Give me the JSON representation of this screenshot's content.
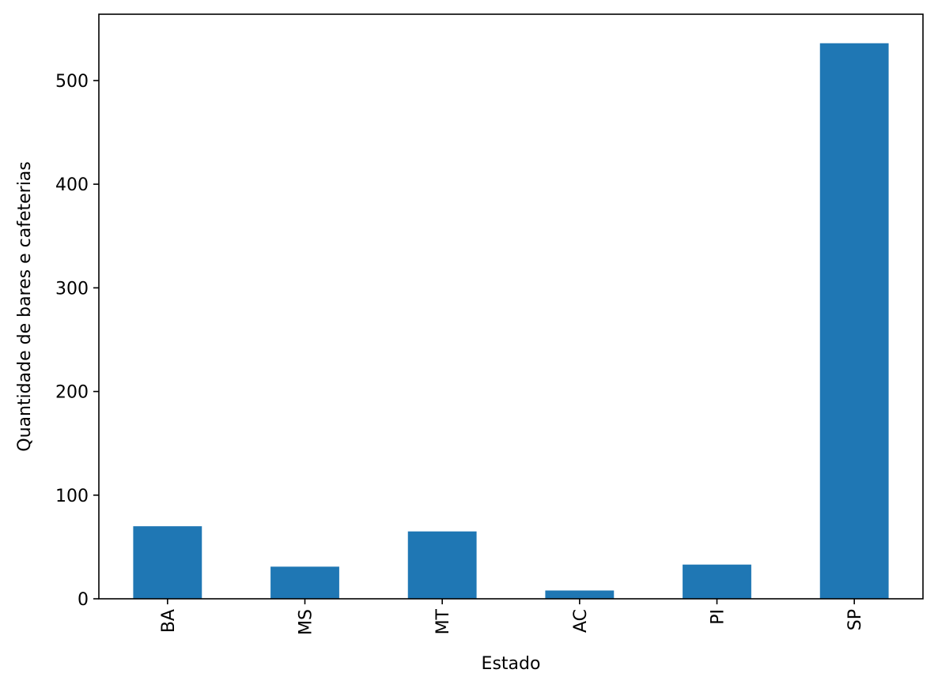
{
  "chart_data": {
    "type": "bar",
    "categories": [
      "BA",
      "MS",
      "MT",
      "AC",
      "PI",
      "SP"
    ],
    "values": [
      70,
      31,
      65,
      8,
      33,
      536
    ],
    "title": "",
    "xlabel": "Estado",
    "ylabel": "Quantidade de bares e cafeterias",
    "ylim": [
      0,
      564
    ],
    "yticks": [
      0,
      100,
      200,
      300,
      400,
      500
    ],
    "grid": false,
    "bar_color": "#1f77b4",
    "xtick_rotation": 90
  }
}
